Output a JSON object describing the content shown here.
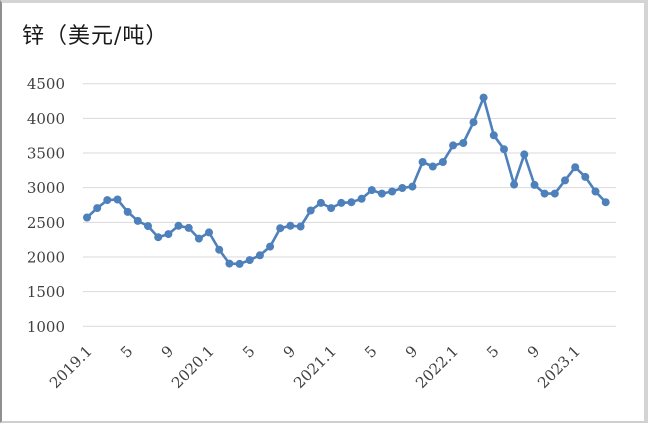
{
  "chart_data": {
    "type": "line",
    "title": "锌（美元/吨）",
    "categories": [
      "2019.1",
      "2019.2",
      "2019.3",
      "2019.4",
      "2019.5",
      "2019.6",
      "2019.7",
      "2019.8",
      "2019.9",
      "2019.10",
      "2019.11",
      "2019.12",
      "2020.1",
      "2020.2",
      "2020.3",
      "2020.4",
      "2020.5",
      "2020.6",
      "2020.7",
      "2020.8",
      "2020.9",
      "2020.10",
      "2020.11",
      "2020.12",
      "2021.1",
      "2021.2",
      "2021.3",
      "2021.4",
      "2021.5",
      "2021.6",
      "2021.7",
      "2021.8",
      "2021.9",
      "2021.10",
      "2021.11",
      "2021.12",
      "2022.1",
      "2022.2",
      "2022.3",
      "2022.4",
      "2022.5",
      "2022.6",
      "2022.7",
      "2022.8",
      "2022.9",
      "2022.10",
      "2022.11",
      "2022.12",
      "2023.1",
      "2023.2",
      "2023.3",
      "2023.4"
    ],
    "series": [
      {
        "name": "zinc_price_usd_per_ton",
        "values": [
          2570,
          2705,
          2820,
          2830,
          2650,
          2520,
          2445,
          2285,
          2330,
          2450,
          2420,
          2265,
          2355,
          2105,
          1905,
          1900,
          1955,
          2025,
          2150,
          2415,
          2450,
          2440,
          2670,
          2780,
          2705,
          2780,
          2790,
          2840,
          2965,
          2915,
          2945,
          2995,
          3015,
          3370,
          3305,
          3370,
          3610,
          3645,
          3945,
          4300,
          3755,
          3555,
          3045,
          3480,
          3040,
          2915,
          2915,
          3105,
          3295,
          3155,
          2945,
          2790
        ]
      }
    ],
    "x_tick_labels": [
      "2019.1",
      "5",
      "9",
      "2020.1",
      "5",
      "9",
      "2021.1",
      "5",
      "9",
      "2022.1",
      "5",
      "9",
      "2023.1"
    ],
    "x_tick_indices": [
      0,
      4,
      8,
      12,
      16,
      20,
      24,
      28,
      32,
      36,
      40,
      44,
      48
    ],
    "yticks": [
      4500,
      4000,
      3500,
      3000,
      2500,
      2000,
      1500,
      1000
    ],
    "ylim": [
      1000,
      4500
    ],
    "grid": true,
    "legend": false
  },
  "colors": {
    "line": "#4E80BC",
    "marker": "#4E80BC",
    "grid": "#D9D9D9",
    "axis_text": "#404040",
    "title_text": "#1A1A1A",
    "frame_border": "#D4D4D4"
  }
}
